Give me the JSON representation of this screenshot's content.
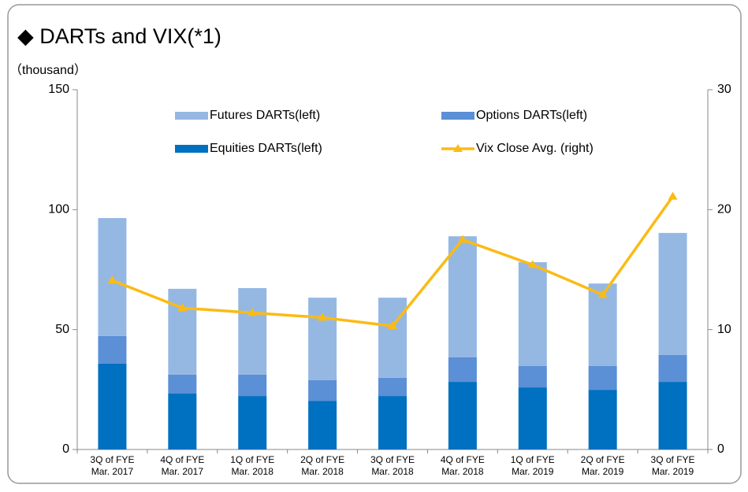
{
  "chart_data": {
    "type": "bar",
    "title": "◆ DARTs and VIX(*1)",
    "y_label": "（thousand）",
    "categories": [
      [
        "3Q of FYE",
        "Mar. 2017"
      ],
      [
        "4Q of FYE",
        "Mar. 2017"
      ],
      [
        "1Q of FYE",
        "Mar. 2018"
      ],
      [
        "2Q of FYE",
        "Mar. 2018"
      ],
      [
        "3Q of FYE",
        "Mar. 2018"
      ],
      [
        "4Q of FYE",
        "Mar. 2018"
      ],
      [
        "1Q of FYE",
        "Mar. 2019"
      ],
      [
        "2Q of FYE",
        "Mar. 2019"
      ],
      [
        "3Q of FYE",
        "Mar. 2019"
      ]
    ],
    "series": [
      {
        "name": "Equities DARTs(left)",
        "color": "#0070c0",
        "values": [
          35.8,
          23.3,
          22.3,
          20.3,
          22.3,
          28.2,
          25.9,
          24.9,
          28.2
        ]
      },
      {
        "name": "Options DARTs(left)",
        "color": "#5b8fd6",
        "values": [
          11.5,
          7.9,
          8.9,
          8.6,
          7.6,
          10.2,
          8.9,
          9.9,
          11.2
        ]
      },
      {
        "name": "Futures DARTs(left)",
        "color": "#95b8e3",
        "values": [
          49.2,
          35.8,
          36.1,
          34.4,
          33.4,
          50.5,
          43.3,
          34.4,
          50.9
        ]
      },
      {
        "name": "Vix Close Avg. (right)",
        "color": "#fbbb14",
        "type": "line",
        "axis": "y2",
        "values": [
          14.1,
          11.8,
          11.4,
          11.0,
          10.3,
          17.5,
          15.4,
          12.9,
          21.1
        ]
      }
    ],
    "ylim": [
      0,
      150
    ],
    "yticks": [
      0,
      50,
      100,
      150
    ],
    "y2lim": [
      0,
      30
    ],
    "y2ticks": [
      0,
      10,
      20,
      30
    ],
    "stacked": true
  }
}
